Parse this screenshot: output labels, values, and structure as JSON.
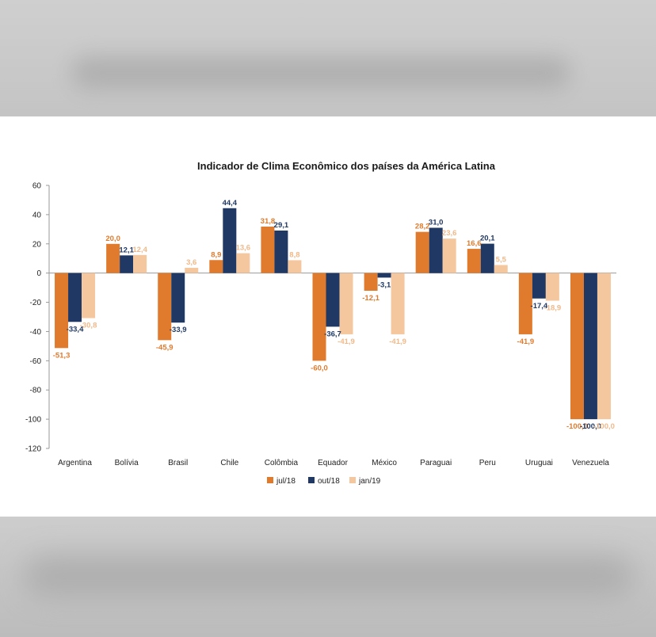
{
  "chart_data": {
    "type": "bar",
    "title": "Indicador de Clima Econômico dos países da América Latina",
    "xlabel": "",
    "ylabel": "",
    "ylim": [
      -120,
      60
    ],
    "yticks": [
      60,
      40,
      20,
      0,
      -20,
      -40,
      -60,
      -80,
      -100,
      -120
    ],
    "grid": false,
    "legend_position": "bottom",
    "categories": [
      "Argentina",
      "Bolívia",
      "Brasil",
      "Chile",
      "Colômbia",
      "Equador",
      "México",
      "Paraguai",
      "Peru",
      "Uruguai",
      "Venezuela"
    ],
    "series": [
      {
        "name": "jul/18",
        "color": "#e07b2e",
        "values": [
          -51.3,
          20.0,
          -45.9,
          8.9,
          31.8,
          -60.0,
          -12.1,
          28.2,
          16.6,
          -41.9,
          -100.0
        ],
        "labels": [
          "-51,3",
          "20,0",
          "-45,9",
          "8,9",
          "31,8",
          "-60,0",
          "-12,1",
          "28,2",
          "16,6",
          "-41,9",
          "-100,0"
        ]
      },
      {
        "name": "out/18",
        "color": "#1f3864",
        "values": [
          -33.4,
          12.1,
          -33.9,
          44.4,
          29.1,
          -36.7,
          -3.1,
          31.0,
          20.1,
          -17.4,
          -100.0
        ],
        "labels": [
          "-33,4",
          "12,1",
          "-33,9",
          "44,4",
          "29,1",
          "-36,7",
          "-3,1",
          "31,0",
          "20,1",
          "-17,4",
          "-100,0"
        ]
      },
      {
        "name": "jan/19",
        "color": "#f5c79e",
        "values": [
          -30.8,
          12.4,
          3.6,
          13.6,
          8.8,
          -41.9,
          -41.9,
          23.6,
          5.5,
          -18.9,
          -100.0
        ],
        "labels": [
          "-30,8",
          "12,4",
          "3,6",
          "13,6",
          "8,8",
          "-41,9",
          "-41,9",
          "23,6",
          "5,5",
          "-18,9",
          "-100,0"
        ]
      }
    ]
  }
}
